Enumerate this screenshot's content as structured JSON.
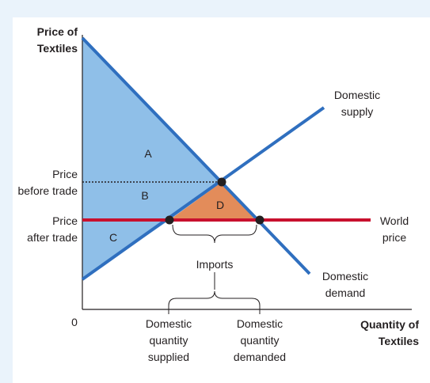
{
  "axes": {
    "y_title_line1": "Price of",
    "y_title_line2": "Textiles",
    "x_title_line1": "Quantity of",
    "x_title_line2": "Textiles",
    "origin": "0"
  },
  "y_labels": {
    "price_before_line1": "Price",
    "price_before_line2": "before trade",
    "price_after_line1": "Price",
    "price_after_line2": "after trade"
  },
  "curve_labels": {
    "supply_line1": "Domestic",
    "supply_line2": "supply",
    "demand_line1": "Domestic",
    "demand_line2": "demand",
    "world_line1": "World",
    "world_line2": "price"
  },
  "areas": {
    "a": "A",
    "b": "B",
    "c": "C",
    "d": "D"
  },
  "imports_label": "Imports",
  "x_labels": {
    "supplied_line1": "Domestic",
    "supplied_line2": "quantity",
    "supplied_line3": "supplied",
    "demanded_line1": "Domestic",
    "demanded_line2": "quantity",
    "demanded_line3": "demanded"
  },
  "colors": {
    "background": "#eaf3fb",
    "surplus_fill": "#8fbfe8",
    "gain_fill": "#e38c5a",
    "curve": "#2f6fbf",
    "world_price": "#c8102e",
    "axis": "#231f20"
  }
}
